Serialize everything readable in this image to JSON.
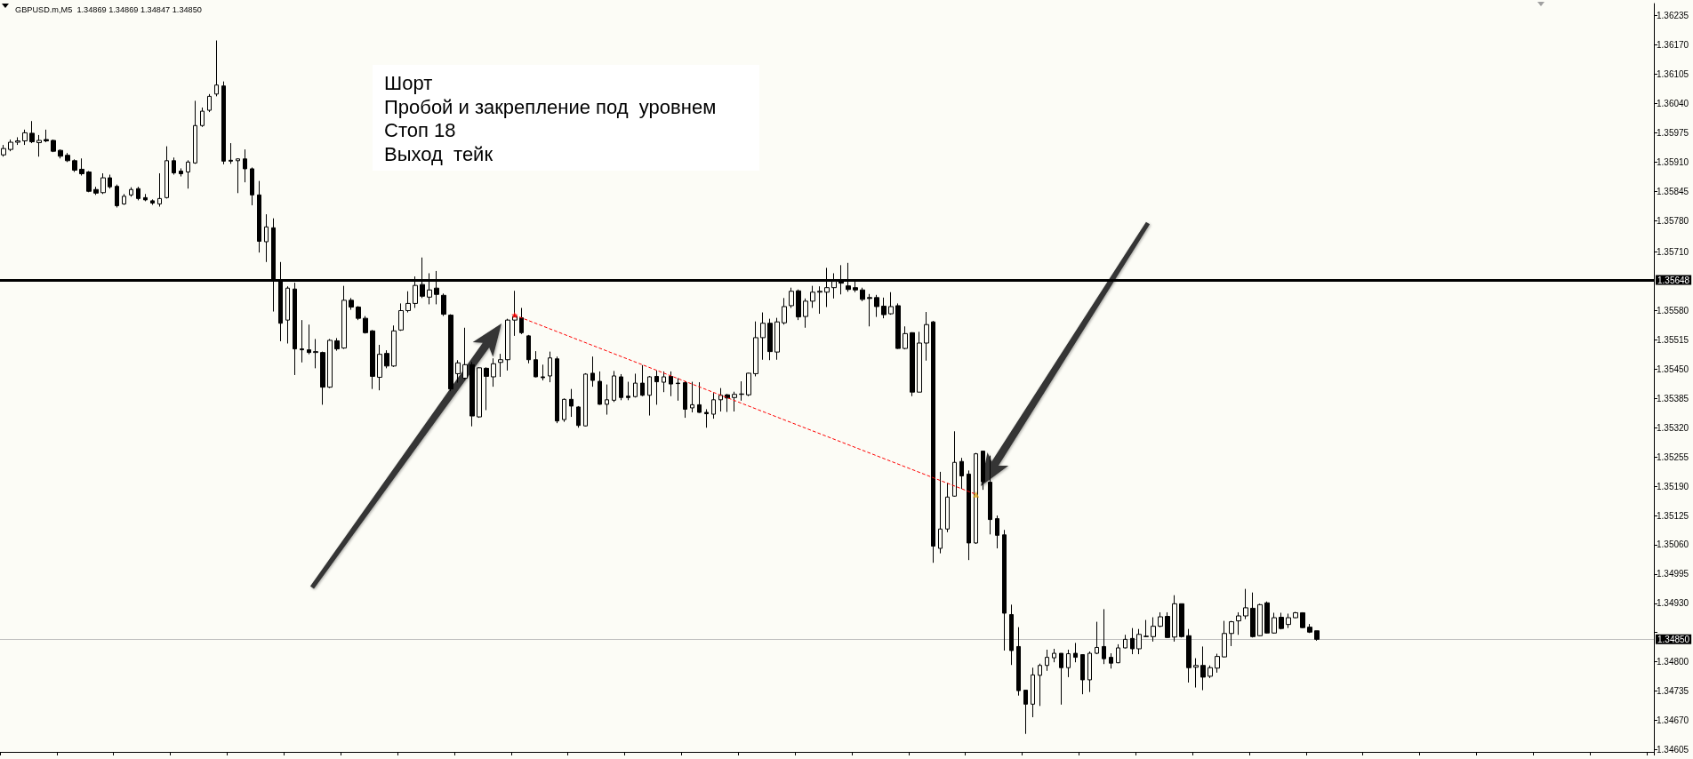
{
  "chart_data": {
    "type": "candlestick",
    "title": "GBPUSD.m,M5  1.34869 1.34869 1.34847 1.34850",
    "color": "#000000",
    "tick_labels": "y",
    "categories": [
      null,
      null,
      null,
      null,
      null,
      null,
      null,
      null,
      null,
      null,
      null,
      null,
      null,
      null,
      null,
      null,
      null,
      null,
      null,
      null,
      null,
      null,
      null,
      null,
      null,
      null,
      null,
      null,
      null,
      null,
      null,
      null,
      null,
      null,
      null,
      null,
      null,
      null,
      null,
      null,
      null,
      null,
      null,
      null,
      null,
      null,
      null,
      null,
      null,
      null,
      null,
      null,
      null,
      null,
      null,
      null,
      null,
      null,
      null,
      null,
      null,
      null,
      null,
      null,
      null,
      null,
      null,
      null,
      null,
      null,
      null,
      null,
      null,
      null,
      null,
      null,
      null,
      null,
      null,
      null,
      null,
      null,
      null,
      null,
      null,
      null,
      null,
      null,
      null,
      null,
      null,
      null,
      null,
      null,
      null,
      null,
      null,
      null,
      null,
      null,
      null,
      null,
      null,
      null,
      null,
      null,
      null,
      null,
      null,
      null,
      null,
      null,
      null,
      null,
      null,
      null,
      null,
      null,
      null,
      null,
      null,
      null,
      null,
      null,
      null,
      null,
      null,
      null,
      null,
      null,
      null,
      null,
      null,
      null,
      null,
      null,
      null,
      null,
      null,
      null,
      null,
      null,
      null,
      null,
      null,
      null,
      null,
      null,
      null,
      null,
      null,
      null,
      null,
      null,
      null,
      null,
      null,
      null,
      null,
      null,
      null,
      null,
      null,
      null,
      null,
      null,
      null,
      null,
      null,
      null,
      null,
      null,
      null,
      null,
      null,
      null,
      null,
      null,
      null,
      null,
      null,
      null,
      null,
      null,
      null,
      null,
      null,
      null,
      null,
      null,
      null,
      null,
      null,
      null,
      null,
      null,
      null,
      null,
      null,
      null,
      null,
      null,
      null,
      null,
      null,
      null,
      null,
      null,
      null,
      null,
      null,
      null,
      null,
      null,
      null,
      null,
      null,
      null,
      null,
      null,
      null,
      null,
      null,
      null,
      null,
      null,
      null,
      null,
      null,
      null,
      null,
      null,
      null
    ],
    "ohlc": [
      [
        1.35926,
        1.35948,
        1.35922,
        1.3594
      ],
      [
        1.35938,
        1.3596,
        1.35934,
        1.35954
      ],
      [
        1.35954,
        1.35965,
        1.35948,
        1.35957
      ],
      [
        1.35957,
        1.35982,
        1.35948,
        1.35975
      ],
      [
        1.35974,
        1.36001,
        1.35952,
        1.35955
      ],
      [
        1.35953,
        1.3597,
        1.35922,
        1.35958
      ],
      [
        1.3596,
        1.35982,
        1.35954,
        1.35957
      ],
      [
        1.35958,
        1.3596,
        1.35932,
        1.35934
      ],
      [
        1.35936,
        1.35938,
        1.35918,
        1.35923
      ],
      [
        1.35925,
        1.3593,
        1.3591,
        1.35913
      ],
      [
        1.35913,
        1.35916,
        1.35888,
        1.35892
      ],
      [
        1.35894,
        1.35918,
        1.3588,
        1.35884
      ],
      [
        1.35888,
        1.3589,
        1.35843,
        1.35845
      ],
      [
        1.35849,
        1.35855,
        1.35837,
        1.35841
      ],
      [
        1.35842,
        1.35885,
        1.35839,
        1.35875
      ],
      [
        1.35875,
        1.35882,
        1.35851,
        1.35855
      ],
      [
        1.35856,
        1.3586,
        1.35809,
        1.35813
      ],
      [
        1.35817,
        1.35839,
        1.35815,
        1.35834
      ],
      [
        1.35837,
        1.35854,
        1.35833,
        1.35849
      ],
      [
        1.35851,
        1.35855,
        1.35825,
        1.35829
      ],
      [
        1.35831,
        1.35839,
        1.35823,
        1.35826
      ],
      [
        1.35824,
        1.35827,
        1.35815,
        1.35819
      ],
      [
        1.35817,
        1.35885,
        1.35811,
        1.35829
      ],
      [
        1.35831,
        1.35945,
        1.35829,
        1.35913
      ],
      [
        1.35913,
        1.3592,
        1.35882,
        1.35886
      ],
      [
        1.3589,
        1.35896,
        1.35878,
        1.35884
      ],
      [
        1.35888,
        1.35914,
        1.35851,
        1.3591
      ],
      [
        1.35908,
        1.36046,
        1.35906,
        1.35991
      ],
      [
        1.35991,
        1.36031,
        1.35988,
        1.36023
      ],
      [
        1.36025,
        1.36061,
        1.36021,
        1.36056
      ],
      [
        1.36061,
        1.3618,
        1.36056,
        1.36081
      ],
      [
        1.36079,
        1.36089,
        1.35905,
        1.35912
      ],
      [
        1.35914,
        1.35952,
        1.35906,
        1.35912
      ],
      [
        1.35913,
        1.35918,
        1.35841,
        1.35917
      ],
      [
        1.35917,
        1.35938,
        1.35865,
        1.35895
      ],
      [
        1.35895,
        1.35898,
        1.35814,
        1.35837
      ],
      [
        1.35837,
        1.35868,
        1.35709,
        1.35734
      ],
      [
        1.35733,
        1.35794,
        1.35688,
        1.35766
      ],
      [
        1.35764,
        1.35785,
        1.35578,
        1.35648
      ],
      [
        1.35648,
        1.35688,
        1.35512,
        1.35552
      ],
      [
        1.35559,
        1.35634,
        1.35507,
        1.3563
      ],
      [
        1.35628,
        1.35642,
        1.35437,
        1.35495
      ],
      [
        1.35495,
        1.35559,
        1.35465,
        1.35493
      ],
      [
        1.35493,
        1.35549,
        1.35483,
        1.35487
      ],
      [
        1.35487,
        1.35517,
        1.35452,
        1.35489
      ],
      [
        1.35487,
        1.35489,
        1.35371,
        1.3541
      ],
      [
        1.3541,
        1.35517,
        1.35408,
        1.35514
      ],
      [
        1.35513,
        1.35519,
        1.35491,
        1.35495
      ],
      [
        1.35497,
        1.35635,
        1.35495,
        1.35603
      ],
      [
        1.35603,
        1.35608,
        1.35582,
        1.35588
      ],
      [
        1.35588,
        1.3559,
        1.35559,
        1.35563
      ],
      [
        1.35563,
        1.35568,
        1.35529,
        1.35531
      ],
      [
        1.35535,
        1.35537,
        1.35406,
        1.35434
      ],
      [
        1.35432,
        1.35504,
        1.35403,
        1.35483
      ],
      [
        1.35485,
        1.35492,
        1.35452,
        1.35457
      ],
      [
        1.35457,
        1.35547,
        1.35455,
        1.35535
      ],
      [
        1.35537,
        1.35596,
        1.35535,
        1.3558
      ],
      [
        1.3558,
        1.35623,
        1.35576,
        1.35596
      ],
      [
        1.35596,
        1.35656,
        1.35586,
        1.35636
      ],
      [
        1.35638,
        1.35698,
        1.35608,
        1.35612
      ],
      [
        1.3561,
        1.35663,
        1.35594,
        1.35626
      ],
      [
        1.3563,
        1.35668,
        1.35594,
        1.35616
      ],
      [
        1.35614,
        1.35618,
        1.35568,
        1.35572
      ],
      [
        1.3557,
        1.35572,
        1.35401,
        1.35406
      ],
      [
        1.3544,
        1.3547,
        1.3542,
        1.35464
      ],
      [
        1.3543,
        1.35542,
        1.35427,
        1.3546
      ],
      [
        1.3546,
        1.35466,
        1.35323,
        1.35346
      ],
      [
        1.35344,
        1.35454,
        1.35342,
        1.35453
      ],
      [
        1.35452,
        1.35454,
        1.35359,
        1.35434
      ],
      [
        1.35433,
        1.35474,
        1.35411,
        1.35462
      ],
      [
        1.35465,
        1.35484,
        1.35433,
        1.35471
      ],
      [
        1.35471,
        1.35562,
        1.35447,
        1.35559
      ],
      [
        1.35559,
        1.35624,
        1.35524,
        1.35567
      ],
      [
        1.35564,
        1.35586,
        1.35528,
        1.35531
      ],
      [
        1.35524,
        1.35526,
        1.35463,
        1.35471
      ],
      [
        1.35471,
        1.3549,
        1.35432,
        1.35433
      ],
      [
        1.35433,
        1.3546,
        1.35425,
        1.35431
      ],
      [
        1.35435,
        1.35489,
        1.35421,
        1.35475
      ],
      [
        1.35473,
        1.35478,
        1.3533,
        1.35335
      ],
      [
        1.35338,
        1.35385,
        1.35333,
        1.35383
      ],
      [
        1.35383,
        1.35406,
        1.35344,
        1.35368
      ],
      [
        1.35366,
        1.35368,
        1.3532,
        1.35325
      ],
      [
        1.35324,
        1.35441,
        1.35323,
        1.35439
      ],
      [
        1.35441,
        1.35478,
        1.35411,
        1.35425
      ],
      [
        1.35423,
        1.35445,
        1.35371,
        1.35372
      ],
      [
        1.35372,
        1.35416,
        1.35349,
        1.35382
      ],
      [
        1.35381,
        1.35446,
        1.35377,
        1.35435
      ],
      [
        1.35433,
        1.35439,
        1.35381,
        1.35387
      ],
      [
        1.3539,
        1.35422,
        1.35381,
        1.35387
      ],
      [
        1.35389,
        1.3544,
        1.35387,
        1.35419
      ],
      [
        1.35419,
        1.35459,
        1.3539,
        1.35392
      ],
      [
        1.35392,
        1.35435,
        1.35347,
        1.35433
      ],
      [
        1.35434,
        1.35447,
        1.35371,
        1.35422
      ],
      [
        1.35421,
        1.35445,
        1.35399,
        1.35433
      ],
      [
        1.35434,
        1.35445,
        1.3539,
        1.35417
      ],
      [
        1.35419,
        1.3543,
        1.3538,
        1.35418
      ],
      [
        1.3542,
        1.35423,
        1.35342,
        1.35361
      ],
      [
        1.35364,
        1.35422,
        1.35354,
        1.35371
      ],
      [
        1.35371,
        1.35421,
        1.35353,
        1.35354
      ],
      [
        1.35354,
        1.35361,
        1.3532,
        1.35351
      ],
      [
        1.3535,
        1.35397,
        1.3534,
        1.35382
      ],
      [
        1.35382,
        1.35408,
        1.35356,
        1.35392
      ],
      [
        1.35393,
        1.35395,
        1.35355,
        1.35386
      ],
      [
        1.35387,
        1.354,
        1.35356,
        1.35394
      ],
      [
        1.35394,
        1.35423,
        1.3538,
        1.35395
      ],
      [
        1.35393,
        1.35442,
        1.3539,
        1.35441
      ],
      [
        1.3544,
        1.35556,
        1.35434,
        1.3552
      ],
      [
        1.3552,
        1.35576,
        1.35471,
        1.35552
      ],
      [
        1.35552,
        1.35562,
        1.3547,
        1.35489
      ],
      [
        1.35488,
        1.35564,
        1.35471,
        1.35555
      ],
      [
        1.35553,
        1.35608,
        1.35549,
        1.35589
      ],
      [
        1.35591,
        1.35631,
        1.35586,
        1.35623
      ],
      [
        1.35624,
        1.35627,
        1.35559,
        1.35566
      ],
      [
        1.35567,
        1.35607,
        1.35542,
        1.35601
      ],
      [
        1.35601,
        1.35635,
        1.35586,
        1.35621
      ],
      [
        1.35621,
        1.35634,
        1.35573,
        1.35623
      ],
      [
        1.35621,
        1.35675,
        1.35588,
        1.35631
      ],
      [
        1.35631,
        1.35663,
        1.35607,
        1.35645
      ],
      [
        1.35645,
        1.35681,
        1.35616,
        1.35641
      ],
      [
        1.35635,
        1.35686,
        1.35622,
        1.35627
      ],
      [
        1.35631,
        1.3565,
        1.35621,
        1.35626
      ],
      [
        1.35626,
        1.35631,
        1.35601,
        1.35605
      ],
      [
        1.35609,
        1.35617,
        1.35545,
        1.35607
      ],
      [
        1.35609,
        1.35615,
        1.35566,
        1.35589
      ],
      [
        1.3559,
        1.35609,
        1.35563,
        1.35571
      ],
      [
        1.35573,
        1.35621,
        1.35571,
        1.35589
      ],
      [
        1.35591,
        1.35596,
        1.35495,
        1.35496
      ],
      [
        1.35496,
        1.35545,
        1.35494,
        1.35529
      ],
      [
        1.35531,
        1.35532,
        1.3539,
        1.35399
      ],
      [
        1.35399,
        1.35533,
        1.35399,
        1.35508
      ],
      [
        1.35508,
        1.35577,
        1.35469,
        1.35549
      ],
      [
        1.35555,
        1.35557,
        1.3502,
        1.35057
      ],
      [
        1.35052,
        1.35222,
        1.35041,
        1.35095
      ],
      [
        1.35095,
        1.35197,
        1.35088,
        1.35166
      ],
      [
        1.35168,
        1.35312,
        1.35167,
        1.35243
      ],
      [
        1.35245,
        1.35253,
        1.35184,
        1.35213
      ],
      [
        1.35217,
        1.35225,
        1.35026,
        1.35064
      ],
      [
        1.35064,
        1.35264,
        1.35062,
        1.35262
      ],
      [
        1.35268,
        1.35268,
        1.35182,
        1.352
      ],
      [
        1.35199,
        1.35258,
        1.35083,
        1.35116
      ],
      [
        1.35118,
        1.35125,
        1.35052,
        1.35081
      ],
      [
        1.35082,
        1.35093,
        1.34825,
        1.34908
      ],
      [
        1.34905,
        1.34927,
        1.34793,
        1.34825
      ],
      [
        1.34834,
        1.34877,
        1.34725,
        1.34736
      ],
      [
        1.34737,
        1.34737,
        1.3464,
        1.34706
      ],
      [
        1.34706,
        1.34787,
        1.34677,
        1.34771
      ],
      [
        1.3477,
        1.34796,
        1.34702,
        1.34792
      ],
      [
        1.34792,
        1.34827,
        1.3478,
        1.3481
      ],
      [
        1.34809,
        1.34829,
        1.34799,
        1.34819
      ],
      [
        1.34819,
        1.34819,
        1.34705,
        1.34787
      ],
      [
        1.34787,
        1.34827,
        1.34766,
        1.34818
      ],
      [
        1.34819,
        1.34842,
        1.34799,
        1.3481
      ],
      [
        1.34816,
        1.34816,
        1.34728,
        1.3476
      ],
      [
        1.3476,
        1.34823,
        1.34733,
        1.34819
      ],
      [
        1.34819,
        1.34889,
        1.34817,
        1.34832
      ],
      [
        1.34834,
        1.34917,
        1.34795,
        1.34807
      ],
      [
        1.3481,
        1.34819,
        1.34785,
        1.34797
      ],
      [
        1.34798,
        1.34839,
        1.34797,
        1.34831
      ],
      [
        1.34831,
        1.3486,
        1.3483,
        1.3485
      ],
      [
        1.34852,
        1.34875,
        1.34817,
        1.34829
      ],
      [
        1.34829,
        1.34873,
        1.34817,
        1.34861
      ],
      [
        1.34856,
        1.34893,
        1.34855,
        1.34857
      ],
      [
        1.34856,
        1.34899,
        1.34845,
        1.34879
      ],
      [
        1.34879,
        1.3491,
        1.34877,
        1.349
      ],
      [
        1.34901,
        1.3491,
        1.34853,
        1.34854
      ],
      [
        1.34855,
        1.34948,
        1.34845,
        1.34929
      ],
      [
        1.34929,
        1.34929,
        1.34854,
        1.34856
      ],
      [
        1.34858,
        1.34873,
        1.34754,
        1.34787
      ],
      [
        1.34788,
        1.34808,
        1.34743,
        1.34792
      ],
      [
        1.34792,
        1.34834,
        1.34737,
        1.34766
      ],
      [
        1.34768,
        1.34792,
        1.34764,
        1.34787
      ],
      [
        1.34786,
        1.34818,
        1.34776,
        1.34812
      ],
      [
        1.34811,
        1.34891,
        1.3481,
        1.34863
      ],
      [
        1.34863,
        1.34891,
        1.34835,
        1.34889
      ],
      [
        1.34891,
        1.3491,
        1.3486,
        1.34902
      ],
      [
        1.34902,
        1.34962,
        1.34895,
        1.3492
      ],
      [
        1.34919,
        1.34954,
        1.34854,
        1.34856
      ],
      [
        1.34858,
        1.34929,
        1.34857,
        1.34927
      ],
      [
        1.34931,
        1.34934,
        1.34863,
        1.34864
      ],
      [
        1.34864,
        1.34909,
        1.34863,
        1.34898
      ],
      [
        1.34899,
        1.34909,
        1.34872,
        1.34874
      ],
      [
        1.34883,
        1.34907,
        1.34875,
        1.34898
      ],
      [
        1.34898,
        1.34911,
        1.34897,
        1.34909
      ],
      [
        1.34909,
        1.3491,
        1.34875,
        1.34876
      ],
      [
        1.34877,
        1.34884,
        1.34864,
        1.34866
      ],
      [
        1.34869,
        1.34869,
        1.34847,
        1.3485
      ],
      null,
      null,
      null,
      null,
      null,
      null,
      null,
      null,
      null,
      null,
      null,
      null,
      null,
      null,
      null,
      null,
      null,
      null,
      null,
      null,
      null,
      null,
      null,
      null,
      null,
      null,
      null,
      null,
      null,
      null,
      null,
      null,
      null,
      null,
      null,
      null,
      null,
      null,
      null,
      null,
      null,
      null,
      null,
      null,
      null,
      null,
      null
    ],
    "series": [
      {
        "type": "line",
        "color": "#ff0000",
        "line_style": "dashed",
        "marker": "none",
        "values": [
          null,
          null,
          null,
          null,
          null,
          null,
          null,
          null,
          null,
          null,
          null,
          null,
          null,
          null,
          null,
          null,
          null,
          null,
          null,
          null,
          null,
          null,
          null,
          null,
          null,
          null,
          null,
          null,
          null,
          null,
          null,
          null,
          null,
          null,
          null,
          null,
          null,
          null,
          null,
          null,
          null,
          null,
          null,
          null,
          null,
          null,
          null,
          null,
          null,
          null,
          null,
          null,
          null,
          null,
          null,
          null,
          null,
          null,
          null,
          null,
          null,
          null,
          null,
          null,
          null,
          null,
          null,
          null,
          null,
          null,
          null,
          null,
          1.3557,
          null,
          null,
          null,
          null,
          null,
          null,
          null,
          null,
          null,
          null,
          null,
          null,
          null,
          null,
          null,
          null,
          null,
          null,
          null,
          null,
          null,
          null,
          null,
          null,
          null,
          null,
          null,
          null,
          null,
          null,
          null,
          null,
          null,
          null,
          null,
          null,
          null,
          null,
          null,
          null,
          null,
          null,
          null,
          null,
          null,
          null,
          null,
          null,
          null,
          null,
          null,
          null,
          null,
          null,
          null,
          null,
          null,
          null,
          null,
          null,
          null,
          null,
          null,
          null,
          1.35172,
          null,
          null,
          null,
          null,
          null,
          null,
          null,
          null,
          null,
          null,
          null,
          null,
          null,
          null,
          null,
          null,
          null,
          null,
          null,
          null,
          null,
          null,
          null,
          null,
          null,
          null,
          null,
          null,
          null,
          null,
          null,
          null,
          null,
          null,
          null,
          null,
          null,
          null,
          null,
          null,
          null,
          null,
          null,
          null,
          null,
          null,
          null,
          null,
          null,
          null,
          null,
          null,
          null,
          null,
          null,
          null,
          null,
          null,
          null,
          null,
          null,
          null,
          null,
          null,
          null,
          null,
          null,
          null,
          null,
          null,
          null,
          null,
          null,
          null,
          null,
          null,
          null,
          null,
          null,
          null,
          null,
          null,
          null,
          null,
          null,
          null,
          null,
          null,
          null,
          null,
          null,
          null,
          null,
          null,
          null
        ]
      },
      {
        "type": "scatter",
        "color": "#ff0000",
        "marker": "star",
        "values": [
          null,
          null,
          null,
          null,
          null,
          null,
          null,
          null,
          null,
          null,
          null,
          null,
          null,
          null,
          null,
          null,
          null,
          null,
          null,
          null,
          null,
          null,
          null,
          null,
          null,
          null,
          null,
          null,
          null,
          null,
          null,
          null,
          null,
          null,
          null,
          null,
          null,
          null,
          null,
          null,
          null,
          null,
          null,
          null,
          null,
          null,
          null,
          null,
          null,
          null,
          null,
          null,
          null,
          null,
          null,
          null,
          null,
          null,
          null,
          null,
          null,
          null,
          null,
          null,
          null,
          null,
          null,
          null,
          null,
          null,
          null,
          null,
          1.3557,
          null,
          null,
          null,
          null,
          null,
          null,
          null,
          null,
          null,
          null,
          null,
          null,
          null,
          null,
          null,
          null,
          null,
          null,
          null,
          null,
          null,
          null,
          null,
          null,
          null,
          null,
          null,
          null,
          null,
          null,
          null,
          null,
          null,
          null,
          null,
          null,
          null,
          null,
          null,
          null,
          null,
          null,
          null,
          null,
          null,
          null,
          null,
          null,
          null,
          null,
          null,
          null,
          null,
          null,
          null,
          null,
          null,
          null,
          null,
          null,
          null,
          null,
          null,
          null,
          null,
          null,
          null,
          null,
          null,
          null,
          null,
          null,
          null,
          null,
          null,
          null,
          null,
          null,
          null,
          null,
          null,
          null,
          null,
          null,
          null,
          null,
          null,
          null,
          null,
          null,
          null,
          null,
          null,
          null,
          null,
          null,
          null,
          null,
          null,
          null,
          null,
          null,
          null,
          null,
          null,
          null,
          null,
          null,
          null,
          null,
          null,
          null,
          null,
          null,
          null,
          null,
          null,
          null,
          null,
          null,
          null,
          null,
          null,
          null,
          null,
          null,
          null,
          null,
          null,
          null,
          null,
          null,
          null,
          null,
          null,
          null,
          null,
          null,
          null,
          null,
          null,
          null,
          null,
          null,
          null,
          null,
          null,
          null,
          null,
          null,
          null,
          null,
          null,
          null,
          null,
          null,
          null,
          null,
          null,
          null
        ]
      },
      {
        "type": "scatter",
        "color": "#daa520",
        "marker": "triangle",
        "values": [
          null,
          null,
          null,
          null,
          null,
          null,
          null,
          null,
          null,
          null,
          null,
          null,
          null,
          null,
          null,
          null,
          null,
          null,
          null,
          null,
          null,
          null,
          null,
          null,
          null,
          null,
          null,
          null,
          null,
          null,
          null,
          null,
          null,
          null,
          null,
          null,
          null,
          null,
          null,
          null,
          null,
          null,
          null,
          null,
          null,
          null,
          null,
          null,
          null,
          null,
          null,
          null,
          null,
          null,
          null,
          null,
          null,
          null,
          null,
          null,
          null,
          null,
          null,
          null,
          null,
          null,
          null,
          null,
          null,
          null,
          null,
          null,
          null,
          null,
          null,
          null,
          null,
          null,
          null,
          null,
          null,
          null,
          null,
          null,
          null,
          null,
          null,
          null,
          null,
          null,
          null,
          null,
          null,
          null,
          null,
          null,
          null,
          null,
          null,
          null,
          null,
          null,
          null,
          null,
          null,
          null,
          null,
          null,
          null,
          null,
          null,
          null,
          null,
          null,
          null,
          null,
          null,
          null,
          null,
          null,
          null,
          null,
          null,
          null,
          null,
          null,
          null,
          null,
          null,
          null,
          null,
          null,
          null,
          null,
          null,
          null,
          null,
          1.35172,
          null,
          null,
          null,
          null,
          null,
          null,
          null,
          null,
          null,
          null,
          null,
          null,
          null,
          null,
          null,
          null,
          null,
          null,
          null,
          null,
          null,
          null,
          null,
          null,
          null,
          null,
          null,
          null,
          null,
          null,
          null,
          null,
          null,
          null,
          null,
          null,
          null,
          null,
          null,
          null,
          null,
          null,
          null,
          null,
          null,
          null,
          null,
          null,
          null,
          null,
          null,
          null,
          null,
          null,
          null,
          null,
          null,
          null,
          null,
          null,
          null,
          null,
          null,
          null,
          null,
          null,
          null,
          null,
          null,
          null,
          null,
          null,
          null,
          null,
          null,
          null,
          null,
          null,
          null,
          null,
          null,
          null,
          null,
          null,
          null,
          null,
          null,
          null,
          null,
          null,
          null,
          null,
          null,
          null,
          null
        ]
      }
    ],
    "ylim": [
      1.346,
      1.36262
    ],
    "yticks": [
      1.36235,
      {
        "value": 1.3617,
        "label": "1.36170"
      },
      1.36105,
      {
        "value": 1.3604,
        "label": "1.36040"
      },
      1.35975,
      {
        "value": 1.3591,
        "label": "1.35910"
      },
      1.35845,
      {
        "value": 1.3578,
        "label": "1.35780"
      },
      {
        "value": 1.3571,
        "label": "1.35710"
      },
      {
        "value": 1.3558,
        "label": "1.35580"
      },
      1.35515,
      {
        "value": 1.3545,
        "label": "1.35450"
      },
      1.35385,
      {
        "value": 1.3532,
        "label": "1.35320"
      },
      1.35255,
      {
        "value": 1.3519,
        "label": "1.35190"
      },
      1.35125,
      {
        "value": 1.3506,
        "label": "1.35060"
      },
      1.34995,
      {
        "value": 1.3493,
        "label": "1.34930"
      },
      {
        "value": 1.34865,
        "label": null
      },
      {
        "value": 1.348,
        "label": "1.34800"
      },
      1.34735,
      {
        "value": 1.3467,
        "label": "1.34670"
      },
      1.34605
    ],
    "ref_lines": [
      {
        "axis": "y",
        "value": 1.35648,
        "label": "1.35648",
        "color": "#000000"
      },
      {
        "axis": "y",
        "value": 1.3485,
        "label": "1.34850",
        "color": "#c0c0c0"
      }
    ],
    "annotations": [
      "Шорт",
      "Пробой и закрепление под  уровнем",
      "Стоп 18",
      "Выход  тейк"
    ]
  }
}
